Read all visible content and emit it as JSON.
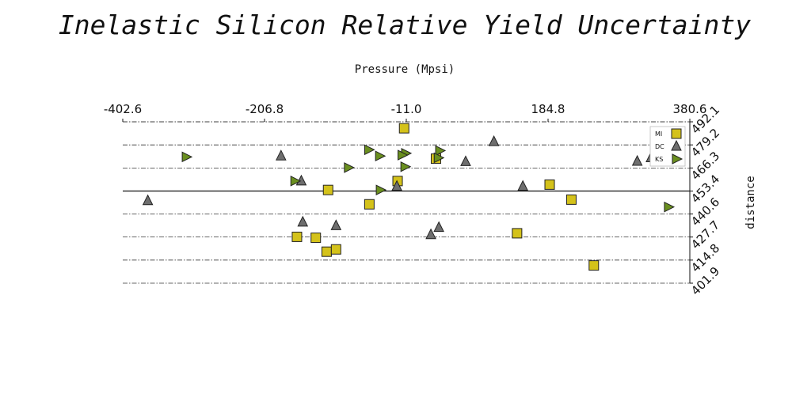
{
  "chart_data": {
    "type": "scatter",
    "title": "Inelastic Silicon Relative Yield Uncertainty",
    "xlabel": "Pressure (Mpsi)",
    "ylabel": "distance",
    "x_axis_position": "top",
    "y_axis_position": "right",
    "xlim": [
      -402.6,
      380.6
    ],
    "ylim": [
      401.9,
      492.1
    ],
    "xticks": [
      "-402.6",
      "-206.8",
      "-11.0",
      "184.8",
      "380.6"
    ],
    "yticks": [
      "492.1",
      "479.2",
      "466.3",
      "453.4",
      "440.6",
      "427.7",
      "414.8",
      "401.9"
    ],
    "grid": "horizontal dash-dot",
    "reference_line_y": 453.4,
    "legend_position": "top-right",
    "series": [
      {
        "name": "MI",
        "marker": "square",
        "color": "#d4c21a",
        "points": [
          [
            -14,
            488.5
          ],
          [
            30,
            471.5
          ],
          [
            -23,
            459.0
          ],
          [
            -119,
            454.0
          ],
          [
            -62,
            446.0
          ],
          [
            -162,
            427.8
          ],
          [
            -136,
            427.3
          ],
          [
            -121,
            419.5
          ],
          [
            -108,
            420.8
          ],
          [
            142,
            429.8
          ],
          [
            187,
            457.0
          ],
          [
            217,
            448.6
          ],
          [
            248,
            411.8
          ]
        ]
      },
      {
        "name": "DC",
        "marker": "triangle",
        "color": "#6e6e6e",
        "points": [
          [
            -368,
            448.0
          ],
          [
            -184,
            473.0
          ],
          [
            -156,
            459.0
          ],
          [
            -24,
            456.0
          ],
          [
            110,
            481.0
          ],
          [
            71,
            469.8
          ],
          [
            150,
            456.0
          ],
          [
            308,
            470.0
          ],
          [
            327,
            472.0
          ],
          [
            -154,
            436.0
          ],
          [
            -108,
            434.0
          ],
          [
            34,
            433.0
          ],
          [
            23,
            429.0
          ]
        ]
      },
      {
        "name": "KS",
        "marker": "triangle-right",
        "color": "#6a8f1f",
        "points": [
          [
            -315,
            472.5
          ],
          [
            -63,
            476.5
          ],
          [
            -48,
            473.0
          ],
          [
            -12,
            474.5
          ],
          [
            -17,
            473.5
          ],
          [
            35,
            476.0
          ],
          [
            33,
            472.0
          ],
          [
            -91,
            466.5
          ],
          [
            -13,
            467.0
          ],
          [
            -165,
            459.0
          ],
          [
            -47,
            454.0
          ],
          [
            351,
            444.5
          ]
        ]
      }
    ]
  }
}
